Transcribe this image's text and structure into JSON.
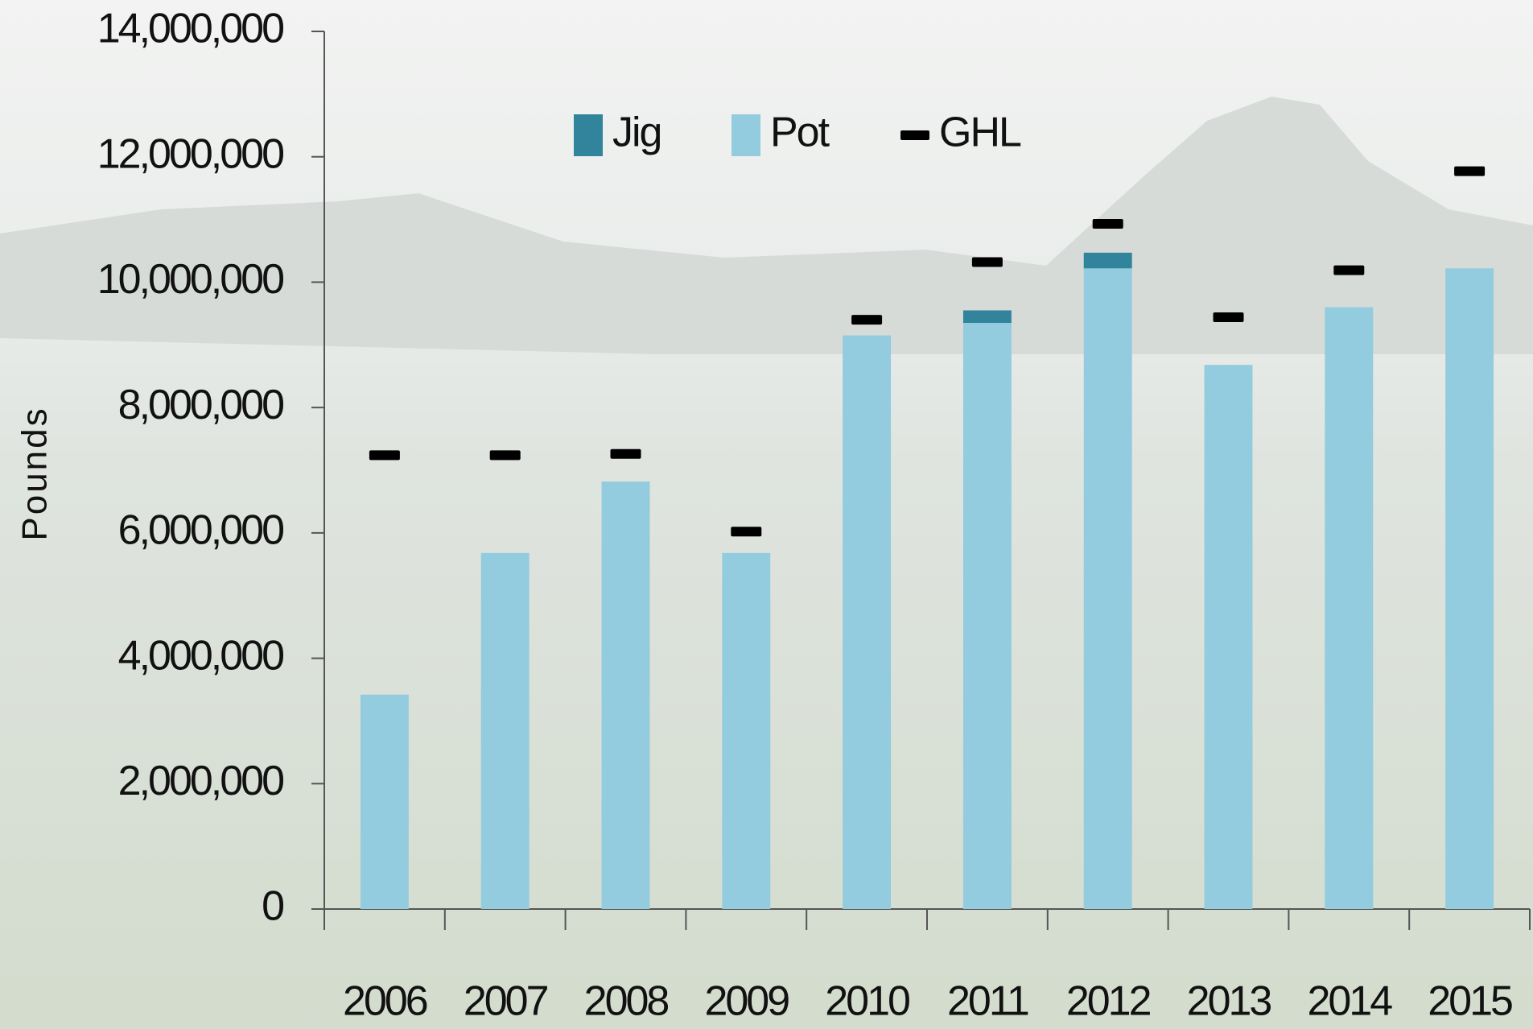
{
  "chart_data": {
    "type": "stacked-bar",
    "y_label": "Pounds",
    "categories": [
      "2006",
      "2007",
      "2008",
      "2009",
      "2010",
      "2011",
      "2012",
      "2013",
      "2014",
      "2015"
    ],
    "series": [
      {
        "name": "Pot",
        "color": "#92ccde",
        "values": [
          3420000,
          5680000,
          6820000,
          5680000,
          9150000,
          9350000,
          10220000,
          8680000,
          9600000,
          10220000
        ]
      },
      {
        "name": "Jig",
        "color": "#31849b",
        "values": [
          0,
          0,
          0,
          0,
          0,
          200000,
          250000,
          0,
          0,
          0
        ]
      }
    ],
    "markers": {
      "name": "GHL",
      "color": "#000000",
      "values": [
        7240000,
        7240000,
        7260000,
        6020000,
        9400000,
        10320000,
        10930000,
        9440000,
        10190000,
        11770000
      ]
    },
    "legend_order": [
      "Jig",
      "Pot",
      "GHL"
    ],
    "ylim": [
      0,
      14000000
    ],
    "yticks": [
      0,
      {
        "value": 2000000,
        "label": "2,000,000"
      },
      {
        "value": 4000000,
        "label": "4,000,000"
      },
      {
        "value": 6000000,
        "label": "6,000,000"
      },
      {
        "value": 8000000,
        "label": "8,000,000"
      },
      {
        "value": 10000000,
        "label": "10,000,000"
      },
      {
        "value": 12000000,
        "label": "12,000,000"
      },
      {
        "value": 14000000,
        "label": "14,000,000"
      }
    ],
    "grid": false,
    "legend": "top"
  }
}
